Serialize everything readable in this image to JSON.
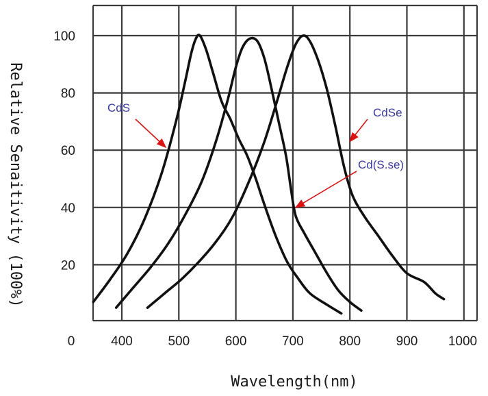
{
  "chart_data": {
    "type": "line",
    "xlabel": "Wavelength(nm)",
    "ylabel": "Relative Senaitivity (100%)",
    "xlim": [
      350,
      1000
    ],
    "ylim": [
      0,
      110
    ],
    "x_ticks": [
      "0",
      "400",
      "500",
      "600",
      "700",
      "800",
      "900",
      "1000"
    ],
    "y_ticks": [
      "20",
      "40",
      "60",
      "80",
      "100"
    ],
    "grid": true,
    "series": [
      {
        "name": "CdS",
        "color": "#111111",
        "points": [
          [
            350,
            7
          ],
          [
            380,
            15
          ],
          [
            410,
            24
          ],
          [
            440,
            36
          ],
          [
            470,
            52
          ],
          [
            495,
            70
          ],
          [
            510,
            83
          ],
          [
            522,
            94
          ],
          [
            530,
            99
          ],
          [
            537,
            100
          ],
          [
            548,
            95
          ],
          [
            560,
            87
          ],
          [
            575,
            77
          ],
          [
            590,
            71
          ],
          [
            605,
            64
          ],
          [
            620,
            58
          ],
          [
            635,
            50
          ],
          [
            650,
            41
          ],
          [
            670,
            30
          ],
          [
            690,
            21
          ],
          [
            710,
            15
          ],
          [
            730,
            10
          ],
          [
            760,
            6
          ],
          [
            785,
            3
          ]
        ]
      },
      {
        "name": "Cd(S.se)",
        "color": "#111111",
        "points": [
          [
            390,
            5
          ],
          [
            420,
            12
          ],
          [
            450,
            19
          ],
          [
            480,
            27
          ],
          [
            510,
            37
          ],
          [
            540,
            49
          ],
          [
            565,
            63
          ],
          [
            585,
            77
          ],
          [
            600,
            89
          ],
          [
            612,
            96
          ],
          [
            625,
            99
          ],
          [
            638,
            98
          ],
          [
            650,
            92
          ],
          [
            662,
            82
          ],
          [
            675,
            70
          ],
          [
            688,
            58
          ],
          [
            697,
            46
          ],
          [
            705,
            37
          ],
          [
            720,
            31
          ],
          [
            740,
            24
          ],
          [
            760,
            17
          ],
          [
            780,
            11
          ],
          [
            800,
            7
          ],
          [
            820,
            4
          ]
        ]
      },
      {
        "name": "CdSe",
        "color": "#111111",
        "points": [
          [
            445,
            5
          ],
          [
            475,
            10
          ],
          [
            505,
            15
          ],
          [
            535,
            21
          ],
          [
            565,
            28
          ],
          [
            595,
            37
          ],
          [
            625,
            50
          ],
          [
            650,
            63
          ],
          [
            672,
            77
          ],
          [
            690,
            89
          ],
          [
            705,
            97
          ],
          [
            718,
            100
          ],
          [
            730,
            98
          ],
          [
            745,
            91
          ],
          [
            760,
            81
          ],
          [
            775,
            68
          ],
          [
            790,
            54
          ],
          [
            805,
            44
          ],
          [
            825,
            37
          ],
          [
            850,
            30
          ],
          [
            875,
            23
          ],
          [
            900,
            17
          ],
          [
            930,
            14
          ],
          [
            950,
            10
          ],
          [
            965,
            8
          ]
        ]
      }
    ],
    "annotations": [
      {
        "text": "CdS",
        "series": "CdS",
        "arrow_to": [
          477,
          61
        ]
      },
      {
        "text": "CdSe",
        "series": "CdSe",
        "arrow_to": [
          800,
          63
        ]
      },
      {
        "text": "Cd(S.se)",
        "series": "Cd(S.se)",
        "arrow_to": [
          705,
          40
        ]
      }
    ]
  }
}
